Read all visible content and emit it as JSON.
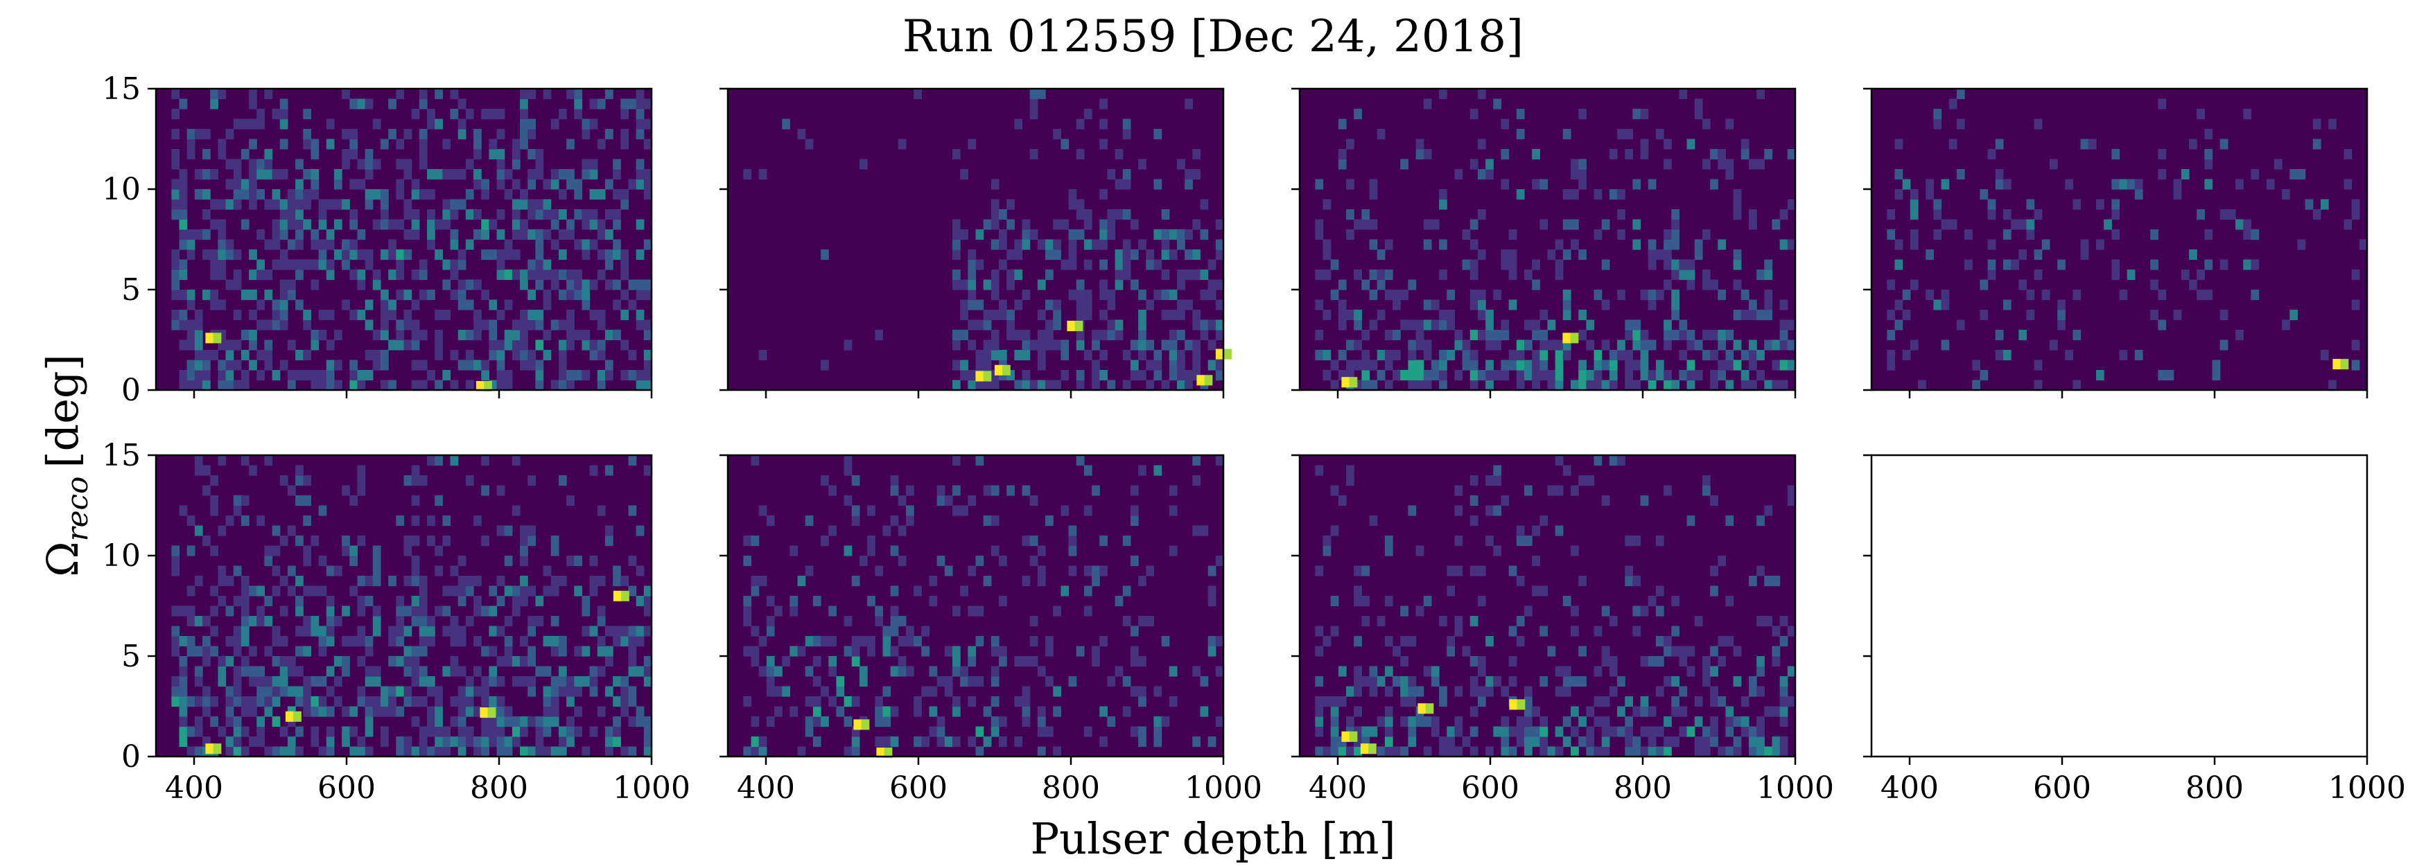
{
  "figure": {
    "title": "Run 012559 [Dec 24, 2018]",
    "xlabel": "Pulser depth [m]",
    "ylabel_symbol": "Ω",
    "ylabel_sub": "reco",
    "ylabel_unit": "[deg]"
  },
  "chart_data": [
    {
      "type": "heatmap",
      "panel": "top-1",
      "xlim": [
        350,
        1000
      ],
      "ylim": [
        0,
        15
      ],
      "density": 0.45,
      "profile": "uniform",
      "peak": 0.55,
      "hot": [
        [
          420,
          2.6
        ],
        [
          775,
          0.2
        ]
      ]
    },
    {
      "type": "heatmap",
      "panel": "top-2",
      "xlim": [
        350,
        1000
      ],
      "ylim": [
        0,
        15
      ],
      "density": 0.5,
      "profile": "right",
      "peak": 0.5,
      "hot": [
        [
          680,
          0.7
        ],
        [
          705,
          1.0
        ],
        [
          800,
          3.2
        ],
        [
          970,
          0.5
        ],
        [
          995,
          1.8
        ]
      ]
    },
    {
      "type": "heatmap",
      "panel": "top-3",
      "xlim": [
        350,
        1000
      ],
      "ylim": [
        0,
        15
      ],
      "density": 0.6,
      "profile": "bottom",
      "peak": 0.7,
      "hot": [
        [
          410,
          0.4
        ],
        [
          700,
          2.6
        ]
      ]
    },
    {
      "type": "heatmap",
      "panel": "top-4",
      "xlim": [
        350,
        1000
      ],
      "ylim": [
        0,
        15
      ],
      "density": 0.12,
      "profile": "uniform",
      "peak": 0.45,
      "hot": [
        [
          960,
          1.3
        ]
      ]
    },
    {
      "type": "heatmap",
      "panel": "bottom-1",
      "xlim": [
        350,
        1000
      ],
      "ylim": [
        0,
        15
      ],
      "density": 0.55,
      "profile": "lowmid",
      "peak": 0.6,
      "hot": [
        [
          420,
          0.4
        ],
        [
          525,
          2.0
        ],
        [
          780,
          2.2
        ],
        [
          955,
          8.0
        ]
      ]
    },
    {
      "type": "heatmap",
      "panel": "bottom-2",
      "xlim": [
        350,
        1000
      ],
      "ylim": [
        0,
        15
      ],
      "density": 0.3,
      "profile": "leftlow",
      "peak": 0.55,
      "hot": [
        [
          520,
          1.6
        ],
        [
          550,
          0.2
        ]
      ]
    },
    {
      "type": "heatmap",
      "panel": "bottom-3",
      "xlim": [
        350,
        1000
      ],
      "ylim": [
        0,
        15
      ],
      "density": 0.55,
      "profile": "bottom",
      "peak": 0.65,
      "hot": [
        [
          410,
          1.0
        ],
        [
          435,
          0.4
        ],
        [
          510,
          2.4
        ],
        [
          630,
          2.6
        ]
      ]
    },
    {
      "type": "heatmap",
      "panel": "bottom-4",
      "xlim": [
        350,
        1000
      ],
      "ylim": [
        0,
        15
      ],
      "density": 0,
      "profile": "empty",
      "peak": 0,
      "hot": []
    }
  ],
  "axes": {
    "x_ticks": [
      "400",
      "600",
      "800",
      "1000"
    ],
    "x_tick_values": [
      400,
      600,
      800,
      1000
    ],
    "y_ticks": [
      "0",
      "5",
      "10",
      "15"
    ],
    "y_tick_values": [
      0,
      5,
      10,
      15
    ]
  },
  "colors": {
    "background": "#440154",
    "colormap": [
      "#440154",
      "#46337e",
      "#365c8d",
      "#277f8e",
      "#1fa187",
      "#4ac16d",
      "#a0da39",
      "#fde725"
    ]
  }
}
